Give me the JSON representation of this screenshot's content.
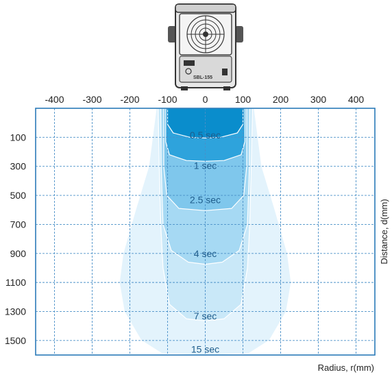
{
  "chart_data": {
    "type": "area",
    "title": "",
    "xlabel": "Radius, r(mm)",
    "ylabel": "Distance, d(mm)",
    "x_ticks": [
      -400,
      -300,
      -200,
      -100,
      0,
      100,
      200,
      300,
      400
    ],
    "y_ticks": [
      100,
      300,
      500,
      700,
      900,
      1100,
      1300,
      1500
    ],
    "xlim": [
      -450,
      450
    ],
    "ylim": [
      1600,
      -100
    ],
    "x_axis_position": "top",
    "y_axis_title_position": "right",
    "grid": true,
    "series": [
      {
        "name": "15 sec",
        "color": "#e3f3fc",
        "label_y": 1560,
        "edge": [
          [
            -130,
            -100
          ],
          [
            -150,
            300
          ],
          [
            -185,
            600
          ],
          [
            -218,
            900
          ],
          [
            -228,
            1100
          ],
          [
            -215,
            1300
          ],
          [
            -170,
            1500
          ],
          [
            -115,
            1590
          ],
          [
            0,
            1600
          ],
          [
            115,
            1590
          ],
          [
            170,
            1500
          ],
          [
            215,
            1300
          ],
          [
            228,
            1100
          ],
          [
            218,
            900
          ],
          [
            185,
            600
          ],
          [
            150,
            300
          ],
          [
            130,
            -100
          ]
        ]
      },
      {
        "name": "7 sec",
        "color": "#c9e8f8",
        "label_y": 1330,
        "edge": [
          [
            -125,
            -100
          ],
          [
            -122,
            300
          ],
          [
            -118,
            700
          ],
          [
            -112,
            1000
          ],
          [
            -95,
            1250
          ],
          [
            -50,
            1350
          ],
          [
            0,
            1365
          ],
          [
            50,
            1350
          ],
          [
            95,
            1250
          ],
          [
            112,
            1000
          ],
          [
            118,
            700
          ],
          [
            122,
            300
          ],
          [
            125,
            -100
          ]
        ]
      },
      {
        "name": "4 sec",
        "color": "#a6d9f3",
        "label_y": 900,
        "edge": [
          [
            -118,
            -100
          ],
          [
            -117,
            300
          ],
          [
            -112,
            700
          ],
          [
            -90,
            880
          ],
          [
            -45,
            960
          ],
          [
            0,
            975
          ],
          [
            45,
            960
          ],
          [
            90,
            880
          ],
          [
            112,
            700
          ],
          [
            117,
            300
          ],
          [
            118,
            -100
          ]
        ]
      },
      {
        "name": "2.5 sec",
        "color": "#7fc7ec",
        "label_y": 530,
        "edge": [
          [
            -110,
            -100
          ],
          [
            -110,
            300
          ],
          [
            -102,
            500
          ],
          [
            -70,
            590
          ],
          [
            0,
            605
          ],
          [
            70,
            590
          ],
          [
            102,
            500
          ],
          [
            110,
            300
          ],
          [
            110,
            -100
          ]
        ]
      },
      {
        "name": "1 sec",
        "color": "#2ea3dc",
        "label_y": 295,
        "edge": [
          [
            -105,
            -100
          ],
          [
            -105,
            130
          ],
          [
            -95,
            220
          ],
          [
            -50,
            260
          ],
          [
            0,
            265
          ],
          [
            50,
            260
          ],
          [
            95,
            220
          ],
          [
            105,
            130
          ],
          [
            105,
            -100
          ]
        ]
      },
      {
        "name": "0.5 sec",
        "color": "#0a8dcc",
        "label_y": 85,
        "edge": [
          [
            -100,
            -100
          ],
          [
            -100,
            10
          ],
          [
            -85,
            70
          ],
          [
            -40,
            100
          ],
          [
            0,
            105
          ],
          [
            40,
            100
          ],
          [
            85,
            70
          ],
          [
            100,
            10
          ],
          [
            100,
            -100
          ]
        ]
      }
    ]
  },
  "device": {
    "brand_label": "SBL-155",
    "icon": "ionizer-fan-blower-icon"
  }
}
